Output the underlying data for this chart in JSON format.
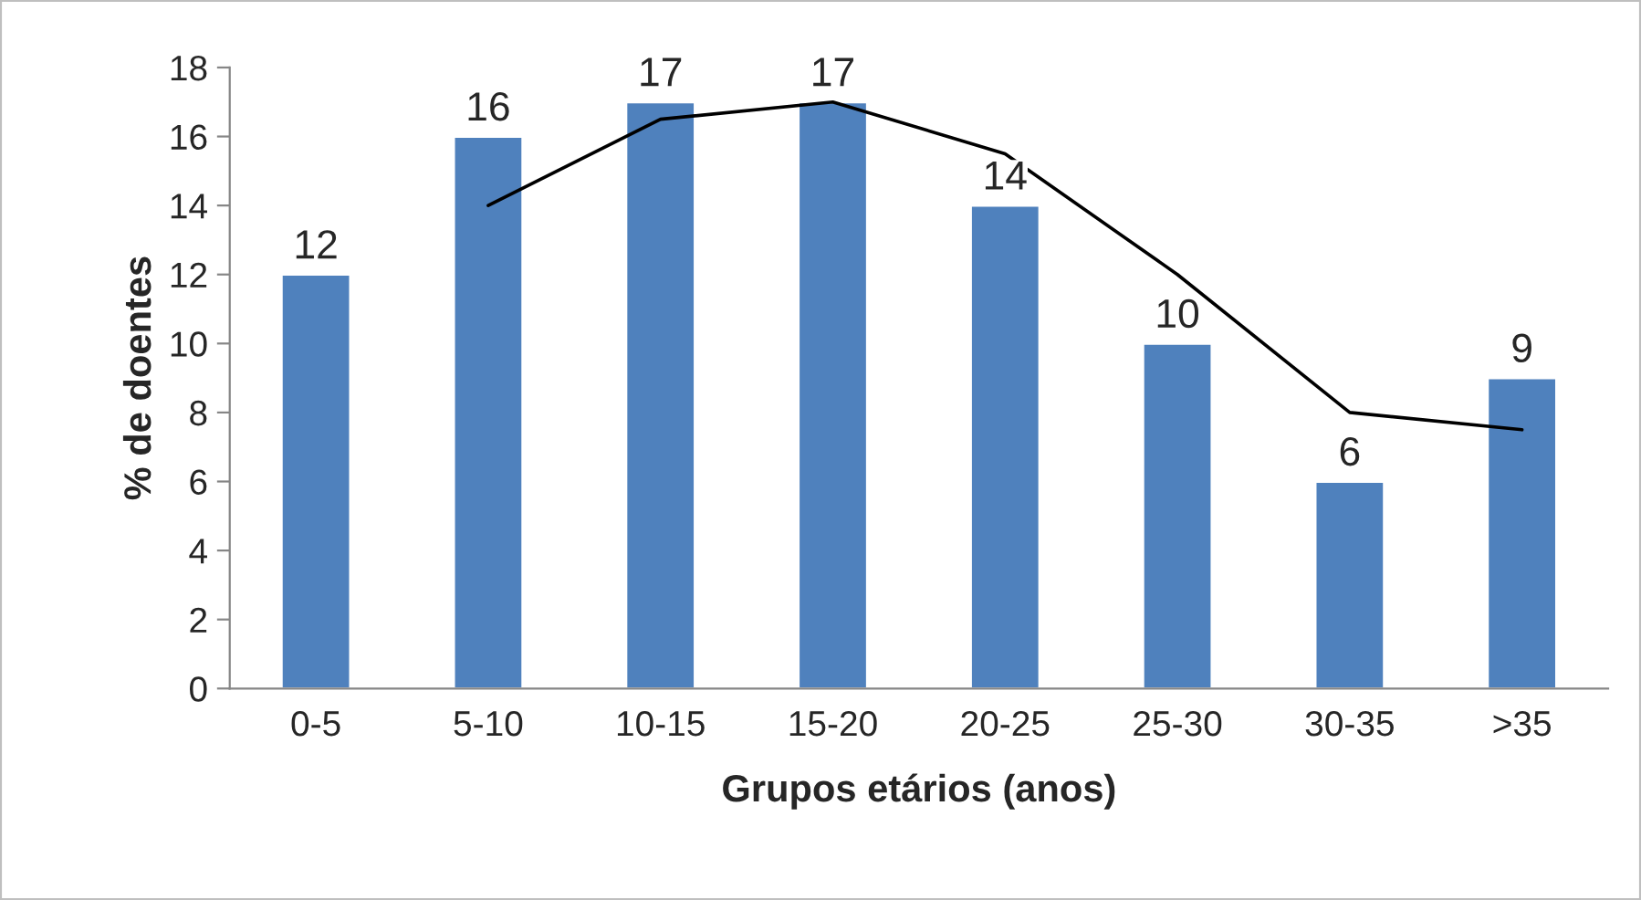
{
  "chart_data": {
    "type": "bar",
    "xlabel": "Grupos etários (anos)",
    "ylabel": "% de doentes",
    "categories": [
      "0-5",
      "5-10",
      "10-15",
      "15-20",
      "20-25",
      "25-30",
      "30-35",
      ">35"
    ],
    "series": [
      {
        "color": "#4f81bd",
        "values": [
          12,
          16,
          17,
          17,
          14,
          10,
          6,
          9
        ],
        "value_labels": [
          "12",
          "16",
          "17",
          "17",
          "14",
          "10",
          "6",
          "9"
        ]
      },
      {
        "type": "line",
        "color": "#000000",
        "values": [
          null,
          14,
          16.5,
          17,
          15.5,
          12,
          8,
          7.5
        ]
      }
    ],
    "ylim": [
      0,
      18
    ],
    "yticks": [
      0,
      2,
      4,
      6,
      8,
      10,
      12,
      14,
      16,
      18
    ],
    "grid": false,
    "legend": false
  }
}
